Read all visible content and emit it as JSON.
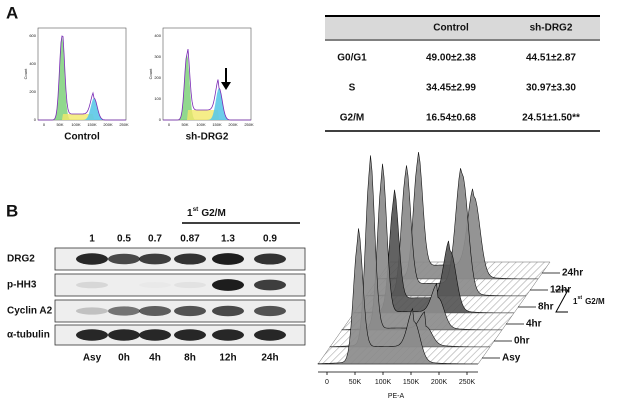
{
  "panel_a": {
    "label": "A",
    "histograms": [
      {
        "label": "Control",
        "y_axis_label": "Count",
        "yticks": [
          "0",
          "200",
          "400",
          "600"
        ],
        "xticks": [
          "0",
          "50K",
          "100K",
          "150K",
          "200K",
          "250K"
        ]
      },
      {
        "label": "sh-DRG2",
        "y_axis_label": "Count",
        "yticks": [
          "0",
          "100",
          "200",
          "300",
          "400"
        ],
        "xticks": [
          "0",
          "50K",
          "100K",
          "150K",
          "200K",
          "250K"
        ]
      }
    ],
    "table": {
      "columns": [
        "Control",
        "sh-DRG2"
      ],
      "rows": [
        [
          "G0/G1",
          "49.00±2.38",
          "44.51±2.87"
        ],
        [
          "S",
          "34.45±2.99",
          "30.97±3.30"
        ],
        [
          "G2/M",
          "16.54±0.68",
          "24.51±1.50**"
        ]
      ]
    }
  },
  "panel_b": {
    "label": "B",
    "blot": {
      "bracket": {
        "ordinal": "1",
        "suffix": "st",
        "text": "G2/M"
      },
      "ratios": [
        1,
        0.5,
        0.7,
        0.87,
        1.3,
        0.9
      ],
      "rows": [
        "DRG2",
        "p-HH3",
        "Cyclin A2",
        "α-tubulin"
      ],
      "lanes": [
        "Asy",
        "0h",
        "4h",
        "8h",
        "12h",
        "24h"
      ]
    },
    "flow": {
      "x_axis_label": "PE-A",
      "xticks": [
        "0",
        "50K",
        "100K",
        "150K",
        "200K",
        "250K"
      ],
      "traces": [
        "Asy",
        "0hr",
        "4hr",
        "8hr",
        "12hr",
        "24hr"
      ],
      "bracket": {
        "ordinal": "1",
        "suffix": "st",
        "text": "G2/M"
      }
    }
  }
}
